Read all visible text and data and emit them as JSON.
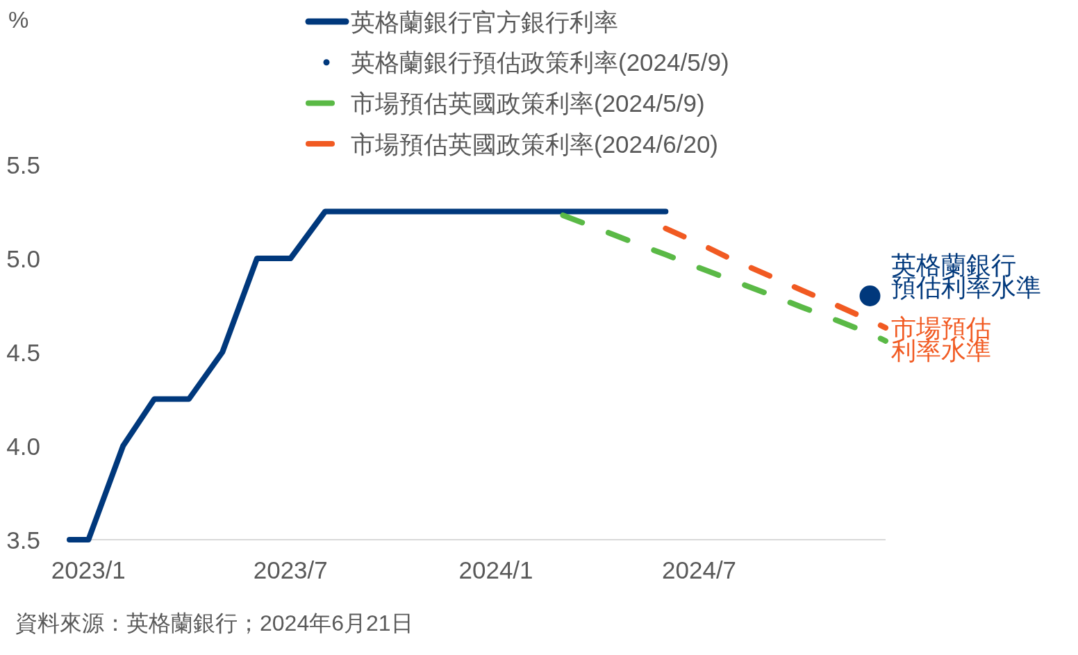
{
  "chart_data": {
    "type": "line",
    "xlim": [
      "2022-12-15",
      "2024-12-15"
    ],
    "ylim": [
      3.5,
      5.5
    ],
    "xticks": [
      {
        "value": "2023-01",
        "label": "2023/1"
      },
      {
        "value": "2023-07",
        "label": "2023/7"
      },
      {
        "value": "2024-01",
        "label": "2024/1"
      },
      {
        "value": "2024-07",
        "label": "2024/7"
      }
    ],
    "yticks": [
      3.5,
      {
        "value": 4,
        "label": "4.0"
      },
      4.5,
      {
        "value": 5,
        "label": "5.0"
      },
      5.5
    ],
    "legend": "top",
    "series": [
      {
        "name": "英格蘭銀行官方銀行利率",
        "color": "#00387c",
        "line_style": "solid",
        "x": [
          "2022-12-15",
          "2023-01",
          "2023-02",
          "2023-03",
          "2023-04",
          "2023-05",
          "2023-06",
          "2023-07",
          "2023-08",
          "2023-09",
          "2023-10",
          "2023-11",
          "2023-12",
          "2024-01",
          "2024-02",
          "2024-03",
          "2024-04",
          "2024-05",
          "2024-06"
        ],
        "values": [
          3.5,
          3.5,
          4.0,
          4.25,
          4.25,
          4.5,
          5.0,
          5.0,
          5.25,
          5.25,
          5.25,
          5.25,
          5.25,
          5.25,
          5.25,
          5.25,
          5.25,
          5.25,
          5.25
        ]
      },
      {
        "name": "英格蘭銀行預估政策利率(2024/5/9)",
        "type": "scatter",
        "color": "#00387c",
        "marker": "circle",
        "x": [
          "2024-12"
        ],
        "values": [
          4.8
        ]
      },
      {
        "name": "市場預估英國政策利率(2024/5/9)",
        "color": "#5ab946",
        "line_style": "dashed",
        "x": [
          "2024-03",
          "2024-04",
          "2024-05",
          "2024-06",
          "2024-07",
          "2024-08",
          "2024-09",
          "2024-10",
          "2024-11",
          "2024-12",
          "2024-12-15"
        ],
        "values": [
          5.23,
          5.16,
          5.09,
          5.02,
          4.95,
          4.88,
          4.81,
          4.74,
          4.67,
          4.6,
          4.56
        ]
      },
      {
        "name": "市場預估英國政策利率(2024/6/20)",
        "color": "#f15a22",
        "line_style": "dashed",
        "x": [
          "2024-06",
          "2024-07",
          "2024-08",
          "2024-09",
          "2024-10",
          "2024-11",
          "2024-12",
          "2024-12-15"
        ],
        "values": [
          5.16,
          5.08,
          4.99,
          4.91,
          4.83,
          4.75,
          4.67,
          4.63
        ]
      }
    ],
    "annotations": [
      "%",
      {
        "text": "英格蘭銀行預估利率水準",
        "x": "2024-12",
        "y": 4.8
      },
      {
        "text": "市場預估利率水準",
        "x": "2024-12-15",
        "y": 4.63
      },
      "資料來源：英格蘭銀行；2024年6月21日"
    ]
  }
}
